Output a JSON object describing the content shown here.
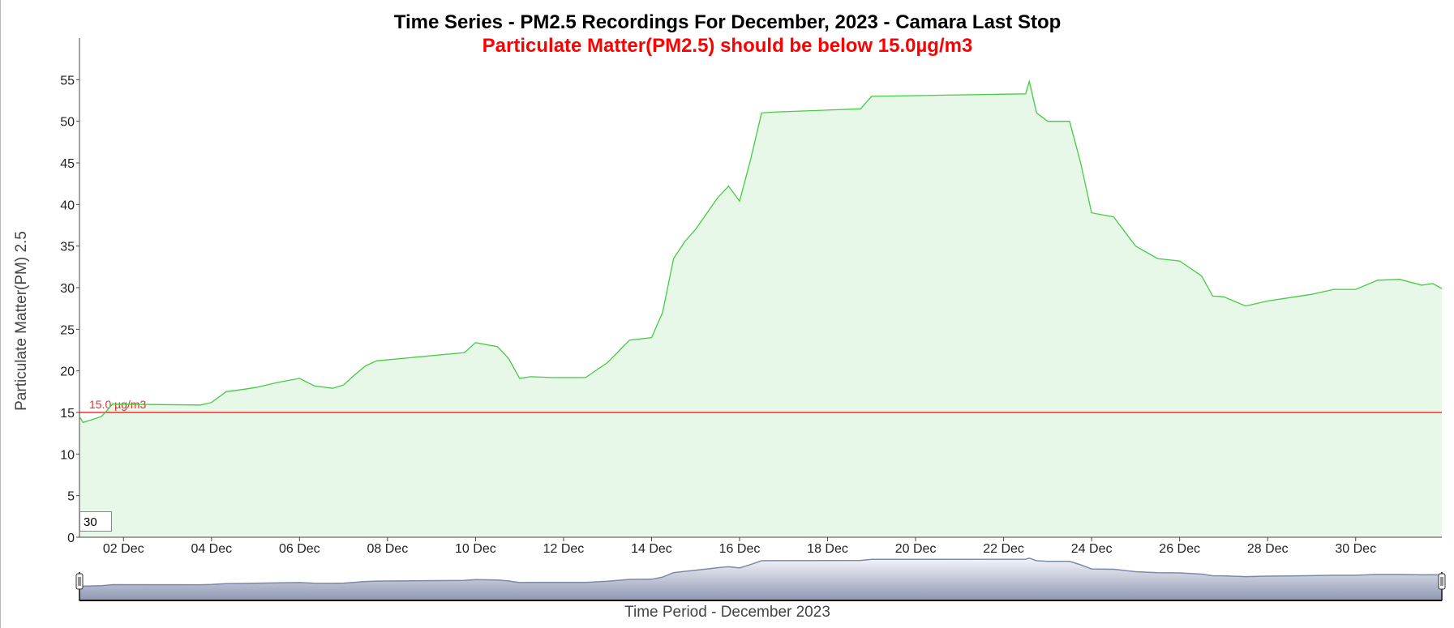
{
  "chart_data": {
    "type": "area",
    "title": "Time Series - PM2.5 Recordings For December, 2023 - Camara Last Stop",
    "subtitle": "Particulate Matter(PM2.5) should be below 15.0µg/m3",
    "xlabel": "Time Period - December 2023",
    "ylabel": "Particulate Matter(PM) 2.5",
    "xlim": [
      "2023-12-01T00:00",
      "2023-12-31T23:00"
    ],
    "ylim": [
      0,
      60
    ],
    "y_ticks": [
      0,
      5,
      10,
      15,
      20,
      25,
      30,
      35,
      40,
      45,
      50,
      55
    ],
    "x_ticks": [
      {
        "date": "2023-12-02T00:00",
        "label": "02 Dec"
      },
      {
        "date": "2023-12-04T00:00",
        "label": "04 Dec"
      },
      {
        "date": "2023-12-06T00:00",
        "label": "06 Dec"
      },
      {
        "date": "2023-12-08T00:00",
        "label": "08 Dec"
      },
      {
        "date": "2023-12-10T00:00",
        "label": "10 Dec"
      },
      {
        "date": "2023-12-12T00:00",
        "label": "12 Dec"
      },
      {
        "date": "2023-12-14T00:00",
        "label": "14 Dec"
      },
      {
        "date": "2023-12-16T00:00",
        "label": "16 Dec"
      },
      {
        "date": "2023-12-18T00:00",
        "label": "18 Dec"
      },
      {
        "date": "2023-12-20T00:00",
        "label": "20 Dec"
      },
      {
        "date": "2023-12-22T00:00",
        "label": "22 Dec"
      },
      {
        "date": "2023-12-24T00:00",
        "label": "24 Dec"
      },
      {
        "date": "2023-12-26T00:00",
        "label": "26 Dec"
      },
      {
        "date": "2023-12-28T00:00",
        "label": "28 Dec"
      },
      {
        "date": "2023-12-30T00:00",
        "label": "30 Dec"
      }
    ],
    "threshold": {
      "value": 15.0,
      "label": "15.0 µg/m3",
      "color": "#ff0000"
    },
    "grid": false,
    "legend": "none",
    "line_color": "#44cc44",
    "fill_color": "#e8f8e8",
    "navigator_color": "#7d8aa6",
    "zoom_value": "30",
    "series": [
      {
        "x": [
          "2023-12-01T00:00",
          "2023-12-01T02:00",
          "2023-12-01T12:00",
          "2023-12-01T14:00",
          "2023-12-01T18:00",
          "2023-12-03T18:00",
          "2023-12-04T00:00",
          "2023-12-04T08:00",
          "2023-12-04T18:00",
          "2023-12-05T00:00",
          "2023-12-05T12:00",
          "2023-12-06T00:00",
          "2023-12-06T08:00",
          "2023-12-06T18:00",
          "2023-12-07T00:00",
          "2023-12-07T06:00",
          "2023-12-07T12:00",
          "2023-12-07T18:00",
          "2023-12-09T18:00",
          "2023-12-10T00:00",
          "2023-12-10T12:00",
          "2023-12-10T18:00",
          "2023-12-11T00:00",
          "2023-12-11T06:00",
          "2023-12-11T18:00",
          "2023-12-12T12:00",
          "2023-12-13T00:00",
          "2023-12-13T12:00",
          "2023-12-14T00:00",
          "2023-12-14T06:00",
          "2023-12-14T12:00",
          "2023-12-14T18:00",
          "2023-12-15T00:00",
          "2023-12-15T12:00",
          "2023-12-15T18:00",
          "2023-12-16T00:00",
          "2023-12-16T06:00",
          "2023-12-16T12:00",
          "2023-12-16T18:00",
          "2023-12-18T18:00",
          "2023-12-19T00:00",
          "2023-12-22T12:00",
          "2023-12-22T14:00",
          "2023-12-22T18:00",
          "2023-12-23T00:00",
          "2023-12-23T12:00",
          "2023-12-23T18:00",
          "2023-12-24T00:00",
          "2023-12-24T12:00",
          "2023-12-25T00:00",
          "2023-12-25T12:00",
          "2023-12-26T00:00",
          "2023-12-26T12:00",
          "2023-12-26T18:00",
          "2023-12-27T00:00",
          "2023-12-27T12:00",
          "2023-12-28T00:00",
          "2023-12-28T12:00",
          "2023-12-29T00:00",
          "2023-12-29T12:00",
          "2023-12-30T00:00",
          "2023-12-30T12:00",
          "2023-12-31T00:00",
          "2023-12-31T12:00",
          "2023-12-31T18:00",
          "2023-12-31T23:00"
        ],
        "values": [
          14.5,
          13.8,
          14.5,
          15.0,
          16.0,
          15.9,
          16.2,
          17.5,
          17.8,
          18.0,
          18.6,
          19.1,
          18.2,
          17.9,
          18.3,
          19.5,
          20.6,
          21.2,
          22.2,
          23.4,
          22.9,
          21.5,
          19.1,
          19.3,
          19.2,
          19.2,
          21.0,
          23.7,
          24.0,
          27.0,
          33.5,
          35.5,
          37.0,
          40.8,
          42.2,
          40.4,
          45.4,
          51.0,
          51.1,
          51.5,
          53.0,
          53.3,
          54.8,
          51.0,
          50.0,
          50.0,
          45.0,
          39.0,
          38.5,
          35.0,
          33.5,
          33.2,
          31.4,
          29.0,
          28.9,
          27.8,
          28.4,
          28.8,
          29.2,
          29.8,
          29.8,
          30.9,
          31.0,
          30.3,
          30.5,
          29.9
        ]
      }
    ]
  }
}
